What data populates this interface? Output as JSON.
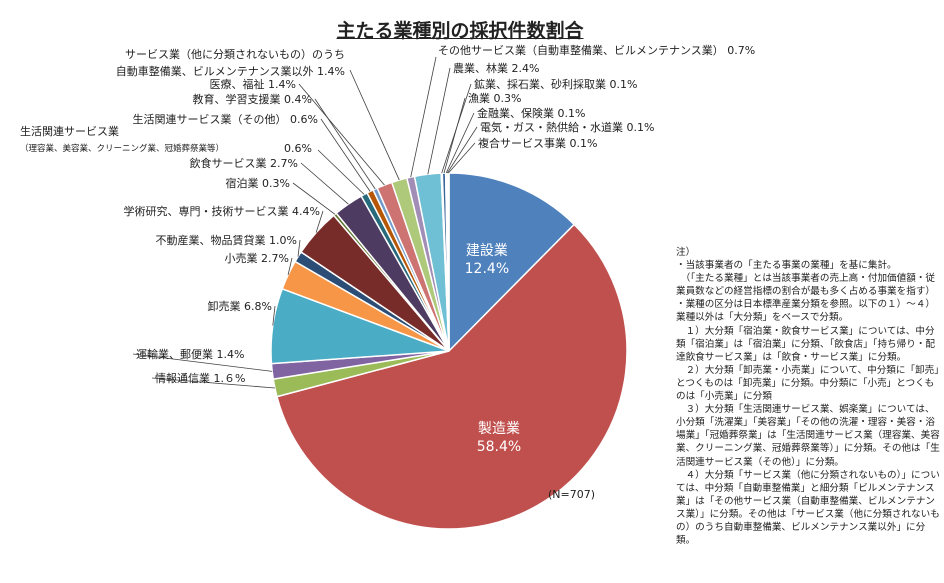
{
  "chart_data": {
    "type": "pie",
    "title": "主たる業種別の採択件数割合",
    "n_label": "(N=707)",
    "start_angle_deg": 0,
    "direction": "clockwise",
    "slices": [
      {
        "label": "建設業",
        "value": 12.4,
        "color": "#4f81bd",
        "label_text": "建設業",
        "value_text": "12.4%",
        "label_mode": "inside"
      },
      {
        "label": "製造業",
        "value": 58.4,
        "color": "#c0504d",
        "label_text": "製造業",
        "value_text": "58.4%",
        "label_mode": "inside"
      },
      {
        "label": "情報通信業",
        "value": 1.6,
        "color": "#9bbb59",
        "label_text": "情報通信業 1.６%",
        "label_mode": "outside"
      },
      {
        "label": "運輸業、郵便業",
        "value": 1.4,
        "color": "#8064a2",
        "label_text": "運輸業、郵便業 1.4%",
        "label_mode": "outside"
      },
      {
        "label": "卸売業",
        "value": 6.8,
        "color": "#4bacc6",
        "label_text": "卸売業 6.8%",
        "label_mode": "outside"
      },
      {
        "label": "小売業",
        "value": 2.7,
        "color": "#f79646",
        "label_text": "小売業 2.7%",
        "label_mode": "outside"
      },
      {
        "label": "不動産業、物品賃貸業",
        "value": 1.0,
        "color": "#2c4d75",
        "label_text": "不動産業、物品賃貸業 1.0%",
        "label_mode": "outside"
      },
      {
        "label": "学術研究、専門・技術サービス業",
        "value": 4.4,
        "color": "#772c2a",
        "label_text": "学術研究、専門・技術サービス業 4.4%",
        "label_mode": "outside"
      },
      {
        "label": "宿泊業",
        "value": 0.3,
        "color": "#5f7530",
        "label_text": "宿泊業 0.3%",
        "label_mode": "outside"
      },
      {
        "label": "飲食サービス業",
        "value": 2.7,
        "color": "#4d3b62",
        "label_text": "飲食サービス業 2.7%",
        "label_mode": "outside"
      },
      {
        "label": "生活関連サービス業（理容業、美容業、クリーニング業、冠婚葬祭業等）",
        "value": 0.6,
        "color": "#276a7c",
        "label_text": "生活関連サービス業",
        "sub_text": "（理容業、美容業、クリーニング業、冠婚葬祭業等）",
        "value_text": "0.6%",
        "label_mode": "outside"
      },
      {
        "label": "生活関連サービス業（その他）",
        "value": 0.6,
        "color": "#b65708",
        "label_text": "生活関連サービス業（その他） 0.6%",
        "label_mode": "outside"
      },
      {
        "label": "教育、学習支援業",
        "value": 0.4,
        "color": "#729aca",
        "label_text": "教育、学習支援業 0.4%",
        "label_mode": "outside"
      },
      {
        "label": "医療、福祉",
        "value": 1.4,
        "color": "#cd7371",
        "label_text": "医療、福祉 1.4%",
        "label_mode": "outside"
      },
      {
        "label": "サービス業（他に分類されないもの）のうち自動車整備業、ビルメンテナンス業以外",
        "value": 1.4,
        "color": "#afc97a",
        "label_text": "サービス業（他に分類されないもの）のうち",
        "label_text2": "自動車整備業、ビルメンテナンス業以外 1.4%",
        "label_mode": "outside"
      },
      {
        "label": "その他サービス業（自動車整備業、ビルメンテナンス業）",
        "value": 0.7,
        "color": "#a18db5",
        "label_text": "その他サービス業（自動車整備業、ビルメンテナンス業） 0.7%",
        "label_mode": "outside"
      },
      {
        "label": "農業、林業",
        "value": 2.4,
        "color": "#6fbfd5",
        "label_text": "農業、林業 2.4%",
        "label_mode": "outside"
      },
      {
        "label": "鉱業、採石業、砂利採取業",
        "value": 0.1,
        "color": "#f9ab6b",
        "label_text": "鉱業、採石業、砂利採取業 0.1%",
        "label_mode": "outside"
      },
      {
        "label": "漁業",
        "value": 0.3,
        "color": "#3a679c",
        "label_text": "漁業 0.3%",
        "label_mode": "outside"
      },
      {
        "label": "金融業、保険業",
        "value": 0.1,
        "color": "#9e3b38",
        "label_text": "金融業、保険業 0.1%",
        "label_mode": "outside"
      },
      {
        "label": "電気・ガス・熱供給・水道業",
        "value": 0.1,
        "color": "#7e9c40",
        "label_text": "電気・ガス・熱供給・水道業 0.1%",
        "label_mode": "outside"
      },
      {
        "label": "複合サービス事業",
        "value": 0.1,
        "color": "#675083",
        "label_text": "複合サービス事業 0.1%",
        "label_mode": "outside"
      }
    ]
  },
  "notes": "注）\n・当該事業者の「主たる事業の業種」を基に集計。\n　（「主たる業種」とは当該事業者の売上高・付加価値額・従業員数などの経営指標の割合が最も多く占める事業を指す）\n・業種の区分は日本標準産業分類を参照。以下の１）～４）業種以外は「大分類」をベースで分類。\n　１）大分類「宿泊業・飲食サービス業」については、中分類「宿泊業」は「宿泊業」に分類、「飲食店」「持ち帰り・配達飲食サービス業」は「飲食・サービス業」に分類。\n　２）大分類「卸売業・小売業」について、中分類に「卸売」とつくものは「卸売業」に分類。中分類に「小売」とつくものは「小売業」に分類\n　３）大分類「生活関連サービス業、娯楽業」については、小分類「洗濯業」「美容業」「その他の洗濯・理容・美容・浴場業」「冠婚葬祭業」は「生活関連サービス業（理容業、美容業、クリーニング業、冠婚葬祭業等）」に分類。その他は「生活関連サービス業（その他）」に分類。\n　４）大分類「サービス業（他に分類されないもの）」については、中分類「自動車整備業」と細分類「ビルメンテナンス業」は「その他サービス業（自動車整備業、ビルメンテナンス業）」に分類。その他は「サービス業（他に分類されないもの）のうち自動車整備業、ビルメンテナンス業以外」に分類。"
}
